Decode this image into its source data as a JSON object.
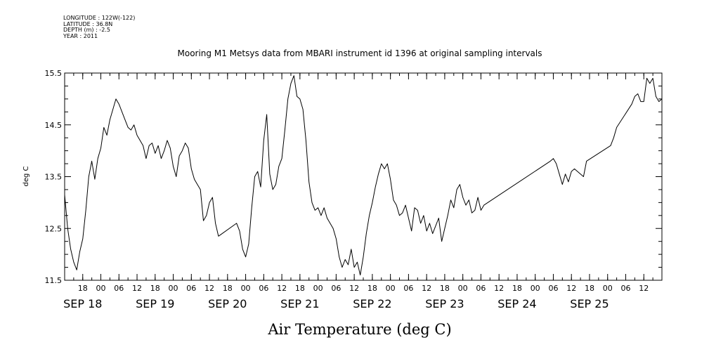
{
  "header": {
    "lines": [
      "LONGITUDE : 122W(-122)",
      "LATITUDE : 36.8N",
      "DEPTH (m) : -2.5",
      "YEAR : 2011"
    ]
  },
  "chart_data": {
    "type": "line",
    "title": "Mooring M1 Metsys data from MBARI instrument id 1396 at original sampling intervals",
    "xlabel": "Air Temperature (deg C)",
    "ylabel": "deg C",
    "ylim": [
      11.5,
      15.5
    ],
    "y_ticks": [
      11.5,
      12.5,
      13.5,
      14.5,
      15.5
    ],
    "y_tick_labels": [
      "11.5",
      "12.5",
      "13.5",
      "14.5",
      "15.5"
    ],
    "x_range_hours": [
      "2011-09-17T12:00",
      "2011-09-25T18:00"
    ],
    "x_hour_ticks": [
      {
        "t": "2011-09-17T18:00",
        "label": "18"
      },
      {
        "t": "2011-09-18T00:00",
        "label": "00"
      },
      {
        "t": "2011-09-18T06:00",
        "label": "06"
      },
      {
        "t": "2011-09-18T12:00",
        "label": "12"
      },
      {
        "t": "2011-09-18T18:00",
        "label": "18"
      },
      {
        "t": "2011-09-19T00:00",
        "label": "00"
      },
      {
        "t": "2011-09-19T06:00",
        "label": "06"
      },
      {
        "t": "2011-09-19T12:00",
        "label": "12"
      },
      {
        "t": "2011-09-19T18:00",
        "label": "18"
      },
      {
        "t": "2011-09-20T00:00",
        "label": "00"
      },
      {
        "t": "2011-09-20T06:00",
        "label": "06"
      },
      {
        "t": "2011-09-20T12:00",
        "label": "12"
      },
      {
        "t": "2011-09-20T18:00",
        "label": "18"
      },
      {
        "t": "2011-09-21T00:00",
        "label": "00"
      },
      {
        "t": "2011-09-21T06:00",
        "label": "06"
      },
      {
        "t": "2011-09-21T12:00",
        "label": "12"
      },
      {
        "t": "2011-09-21T18:00",
        "label": "18"
      },
      {
        "t": "2011-09-22T00:00",
        "label": "00"
      },
      {
        "t": "2011-09-22T06:00",
        "label": "06"
      },
      {
        "t": "2011-09-22T12:00",
        "label": "12"
      },
      {
        "t": "2011-09-22T18:00",
        "label": "18"
      },
      {
        "t": "2011-09-23T00:00",
        "label": "00"
      },
      {
        "t": "2011-09-23T06:00",
        "label": "06"
      },
      {
        "t": "2011-09-23T12:00",
        "label": "12"
      },
      {
        "t": "2011-09-23T18:00",
        "label": "18"
      },
      {
        "t": "2011-09-24T00:00",
        "label": "00"
      },
      {
        "t": "2011-09-24T06:00",
        "label": "06"
      },
      {
        "t": "2011-09-24T12:00",
        "label": "12"
      },
      {
        "t": "2011-09-24T18:00",
        "label": "18"
      },
      {
        "t": "2011-09-25T00:00",
        "label": "00"
      },
      {
        "t": "2011-09-25T06:00",
        "label": "06"
      },
      {
        "t": "2011-09-25T12:00",
        "label": "12"
      }
    ],
    "x_day_labels": [
      {
        "t": "2011-09-17T18:00",
        "label": "SEP 18"
      },
      {
        "t": "2011-09-18T18:00",
        "label": "SEP 19"
      },
      {
        "t": "2011-09-19T18:00",
        "label": "SEP 20"
      },
      {
        "t": "2011-09-20T18:00",
        "label": "SEP 21"
      },
      {
        "t": "2011-09-21T18:00",
        "label": "SEP 22"
      },
      {
        "t": "2011-09-22T18:00",
        "label": "SEP 23"
      },
      {
        "t": "2011-09-23T18:00",
        "label": "SEP 24"
      },
      {
        "t": "2011-09-24T18:00",
        "label": "SEP 25"
      }
    ],
    "grid": false,
    "series": [
      {
        "color": "#000000",
        "points": [
          [
            "2011-09-17T12:00",
            13.15
          ],
          [
            "2011-09-17T13:00",
            12.5
          ],
          [
            "2011-09-17T14:00",
            12.1
          ],
          [
            "2011-09-17T15:00",
            11.85
          ],
          [
            "2011-09-17T16:00",
            11.7
          ],
          [
            "2011-09-17T17:00",
            12.05
          ],
          [
            "2011-09-17T18:00",
            12.3
          ],
          [
            "2011-09-17T19:00",
            12.85
          ],
          [
            "2011-09-17T20:00",
            13.5
          ],
          [
            "2011-09-17T21:00",
            13.8
          ],
          [
            "2011-09-17T22:00",
            13.45
          ],
          [
            "2011-09-17T23:00",
            13.85
          ],
          [
            "2011-09-18T00:00",
            14.05
          ],
          [
            "2011-09-18T01:00",
            14.45
          ],
          [
            "2011-09-18T02:00",
            14.3
          ],
          [
            "2011-09-18T03:00",
            14.6
          ],
          [
            "2011-09-18T04:00",
            14.8
          ],
          [
            "2011-09-18T05:00",
            15.0
          ],
          [
            "2011-09-18T06:00",
            14.9
          ],
          [
            "2011-09-18T07:00",
            14.75
          ],
          [
            "2011-09-18T08:00",
            14.6
          ],
          [
            "2011-09-18T09:00",
            14.45
          ],
          [
            "2011-09-18T10:00",
            14.4
          ],
          [
            "2011-09-18T11:00",
            14.5
          ],
          [
            "2011-09-18T12:00",
            14.3
          ],
          [
            "2011-09-18T13:00",
            14.2
          ],
          [
            "2011-09-18T14:00",
            14.1
          ],
          [
            "2011-09-18T15:00",
            13.85
          ],
          [
            "2011-09-18T16:00",
            14.1
          ],
          [
            "2011-09-18T17:00",
            14.15
          ],
          [
            "2011-09-18T18:00",
            13.95
          ],
          [
            "2011-09-18T19:00",
            14.1
          ],
          [
            "2011-09-18T20:00",
            13.85
          ],
          [
            "2011-09-18T21:00",
            14.0
          ],
          [
            "2011-09-18T22:00",
            14.2
          ],
          [
            "2011-09-18T23:00",
            14.05
          ],
          [
            "2011-09-19T00:00",
            13.7
          ],
          [
            "2011-09-19T01:00",
            13.5
          ],
          [
            "2011-09-19T02:00",
            13.9
          ],
          [
            "2011-09-19T03:00",
            14.0
          ],
          [
            "2011-09-19T04:00",
            14.15
          ],
          [
            "2011-09-19T05:00",
            14.05
          ],
          [
            "2011-09-19T06:00",
            13.65
          ],
          [
            "2011-09-19T07:00",
            13.45
          ],
          [
            "2011-09-19T08:00",
            13.35
          ],
          [
            "2011-09-19T09:00",
            13.25
          ],
          [
            "2011-09-19T10:00",
            12.65
          ],
          [
            "2011-09-19T11:00",
            12.75
          ],
          [
            "2011-09-19T12:00",
            13.0
          ],
          [
            "2011-09-19T13:00",
            13.1
          ],
          [
            "2011-09-19T14:00",
            12.6
          ],
          [
            "2011-09-19T15:00",
            12.35
          ],
          [
            "2011-09-19T21:00",
            12.6
          ],
          [
            "2011-09-19T22:00",
            12.45
          ],
          [
            "2011-09-19T23:00",
            12.1
          ],
          [
            "2011-09-20T00:00",
            11.95
          ],
          [
            "2011-09-20T01:00",
            12.2
          ],
          [
            "2011-09-20T02:00",
            12.9
          ],
          [
            "2011-09-20T03:00",
            13.5
          ],
          [
            "2011-09-20T04:00",
            13.6
          ],
          [
            "2011-09-20T05:00",
            13.3
          ],
          [
            "2011-09-20T06:00",
            14.2
          ],
          [
            "2011-09-20T07:00",
            14.7
          ],
          [
            "2011-09-20T08:00",
            13.55
          ],
          [
            "2011-09-20T09:00",
            13.25
          ],
          [
            "2011-09-20T10:00",
            13.35
          ],
          [
            "2011-09-20T11:00",
            13.7
          ],
          [
            "2011-09-20T12:00",
            13.85
          ],
          [
            "2011-09-20T13:00",
            14.4
          ],
          [
            "2011-09-20T14:00",
            15.0
          ],
          [
            "2011-09-20T15:00",
            15.3
          ],
          [
            "2011-09-20T16:00",
            15.45
          ],
          [
            "2011-09-20T17:00",
            15.05
          ],
          [
            "2011-09-20T18:00",
            15.0
          ],
          [
            "2011-09-20T19:00",
            14.8
          ],
          [
            "2011-09-20T20:00",
            14.2
          ],
          [
            "2011-09-20T21:00",
            13.4
          ],
          [
            "2011-09-20T22:00",
            13.0
          ],
          [
            "2011-09-20T23:00",
            12.85
          ],
          [
            "2011-09-21T00:00",
            12.9
          ],
          [
            "2011-09-21T01:00",
            12.75
          ],
          [
            "2011-09-21T02:00",
            12.9
          ],
          [
            "2011-09-21T03:00",
            12.7
          ],
          [
            "2011-09-21T04:00",
            12.6
          ],
          [
            "2011-09-21T05:00",
            12.5
          ],
          [
            "2011-09-21T06:00",
            12.3
          ],
          [
            "2011-09-21T07:00",
            11.95
          ],
          [
            "2011-09-21T08:00",
            11.75
          ],
          [
            "2011-09-21T09:00",
            11.9
          ],
          [
            "2011-09-21T10:00",
            11.8
          ],
          [
            "2011-09-21T11:00",
            12.1
          ],
          [
            "2011-09-21T12:00",
            11.75
          ],
          [
            "2011-09-21T13:00",
            11.85
          ],
          [
            "2011-09-21T14:00",
            11.6
          ],
          [
            "2011-09-21T15:00",
            11.95
          ],
          [
            "2011-09-21T16:00",
            12.4
          ],
          [
            "2011-09-21T17:00",
            12.75
          ],
          [
            "2011-09-21T18:00",
            13.0
          ],
          [
            "2011-09-21T19:00",
            13.3
          ],
          [
            "2011-09-21T20:00",
            13.55
          ],
          [
            "2011-09-21T21:00",
            13.75
          ],
          [
            "2011-09-21T22:00",
            13.65
          ],
          [
            "2011-09-21T23:00",
            13.75
          ],
          [
            "2011-09-22T00:00",
            13.45
          ],
          [
            "2011-09-22T01:00",
            13.05
          ],
          [
            "2011-09-22T02:00",
            12.95
          ],
          [
            "2011-09-22T03:00",
            12.75
          ],
          [
            "2011-09-22T04:00",
            12.8
          ],
          [
            "2011-09-22T05:00",
            12.95
          ],
          [
            "2011-09-22T06:00",
            12.7
          ],
          [
            "2011-09-22T07:00",
            12.45
          ],
          [
            "2011-09-22T08:00",
            12.9
          ],
          [
            "2011-09-22T09:00",
            12.85
          ],
          [
            "2011-09-22T10:00",
            12.6
          ],
          [
            "2011-09-22T11:00",
            12.75
          ],
          [
            "2011-09-22T12:00",
            12.45
          ],
          [
            "2011-09-22T13:00",
            12.6
          ],
          [
            "2011-09-22T14:00",
            12.4
          ],
          [
            "2011-09-22T15:00",
            12.55
          ],
          [
            "2011-09-22T16:00",
            12.7
          ],
          [
            "2011-09-22T17:00",
            12.25
          ],
          [
            "2011-09-22T18:00",
            12.5
          ],
          [
            "2011-09-22T19:00",
            12.75
          ],
          [
            "2011-09-22T20:00",
            13.05
          ],
          [
            "2011-09-22T21:00",
            12.9
          ],
          [
            "2011-09-22T22:00",
            13.25
          ],
          [
            "2011-09-22T23:00",
            13.35
          ],
          [
            "2011-09-23T00:00",
            13.1
          ],
          [
            "2011-09-23T01:00",
            12.95
          ],
          [
            "2011-09-23T02:00",
            13.05
          ],
          [
            "2011-09-23T03:00",
            12.8
          ],
          [
            "2011-09-23T04:00",
            12.85
          ],
          [
            "2011-09-23T05:00",
            13.1
          ],
          [
            "2011-09-23T06:00",
            12.85
          ],
          [
            "2011-09-23T07:00",
            12.95
          ],
          [
            "2011-09-24T05:00",
            13.8
          ],
          [
            "2011-09-24T06:00",
            13.85
          ],
          [
            "2011-09-24T07:00",
            13.75
          ],
          [
            "2011-09-24T08:00",
            13.55
          ],
          [
            "2011-09-24T09:00",
            13.35
          ],
          [
            "2011-09-24T10:00",
            13.55
          ],
          [
            "2011-09-24T11:00",
            13.4
          ],
          [
            "2011-09-24T12:00",
            13.6
          ],
          [
            "2011-09-24T13:00",
            13.65
          ],
          [
            "2011-09-24T16:00",
            13.5
          ],
          [
            "2011-09-24T17:00",
            13.8
          ],
          [
            "2011-09-25T01:00",
            14.1
          ],
          [
            "2011-09-25T02:00",
            14.25
          ],
          [
            "2011-09-25T03:00",
            14.45
          ],
          [
            "2011-09-25T08:00",
            14.9
          ],
          [
            "2011-09-25T09:00",
            15.05
          ],
          [
            "2011-09-25T10:00",
            15.1
          ],
          [
            "2011-09-25T11:00",
            14.95
          ],
          [
            "2011-09-25T12:00",
            14.95
          ],
          [
            "2011-09-25T13:00",
            15.4
          ],
          [
            "2011-09-25T14:00",
            15.3
          ],
          [
            "2011-09-25T15:00",
            15.4
          ],
          [
            "2011-09-25T16:00",
            15.05
          ],
          [
            "2011-09-25T17:00",
            14.95
          ],
          [
            "2011-09-25T18:00",
            15.0
          ]
        ]
      }
    ]
  }
}
